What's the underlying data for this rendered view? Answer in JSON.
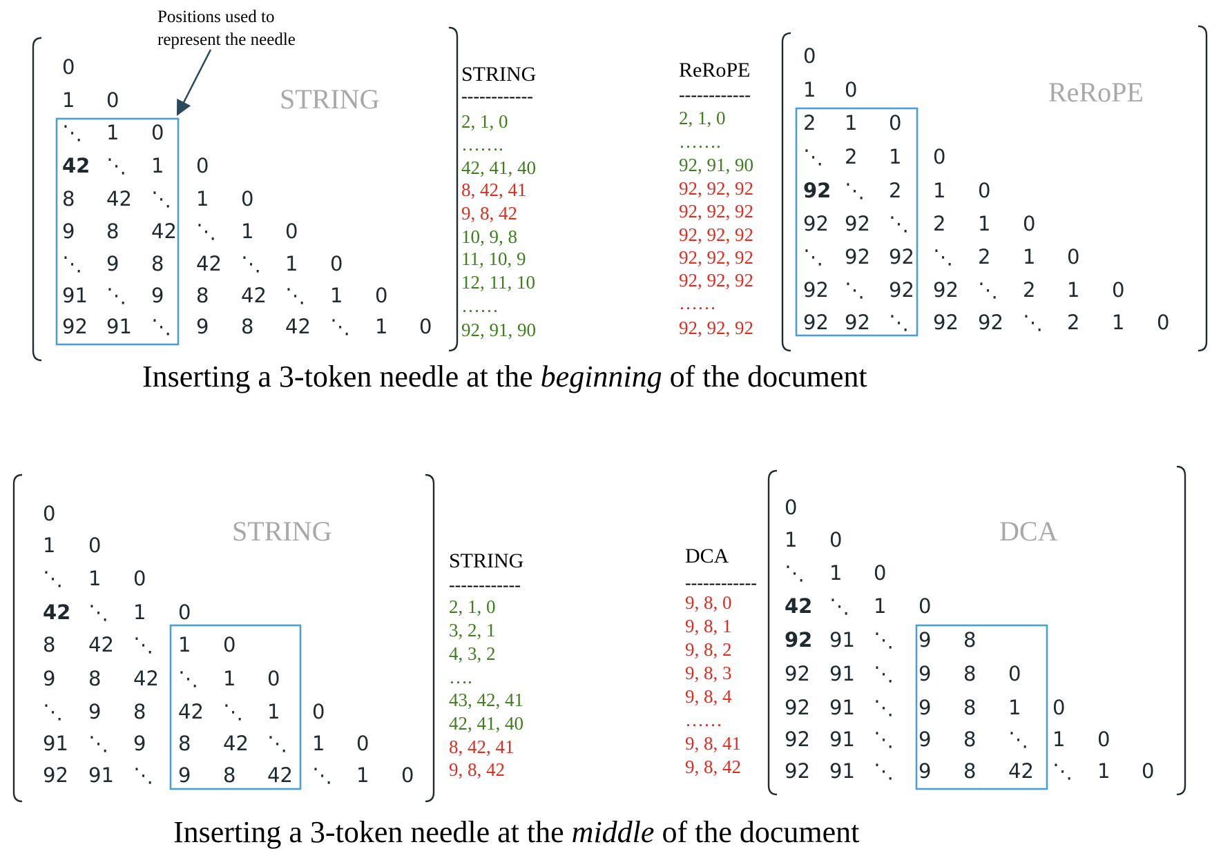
{
  "colors": {
    "normal": "#1f2a30",
    "needle": "#e8402a",
    "seq_green": "#3f7e1e",
    "seq_red": "#e02c20",
    "box": "#4b9fd0",
    "watermark": "#a8a8a8"
  },
  "top": {
    "annotation": [
      "Positions used to",
      "represent the needle"
    ],
    "caption": {
      "before": "Inserting a 3-token needle at the ",
      "emph": "beginning",
      "after": " of the document"
    },
    "left_matrix": {
      "watermark": "STRING",
      "rows": [
        [
          [
            "0",
            "n"
          ]
        ],
        [
          [
            "1",
            "n"
          ],
          [
            "0",
            "n"
          ]
        ],
        [
          [
            "⋱",
            "n"
          ],
          [
            "1",
            "n"
          ],
          [
            "0",
            "n"
          ]
        ],
        [
          [
            "42",
            "b"
          ],
          [
            "⋱",
            "n"
          ],
          [
            "1",
            "n"
          ],
          [
            "0",
            "n"
          ]
        ],
        [
          [
            "8",
            "r"
          ],
          [
            "42",
            "n"
          ],
          [
            "⋱",
            "n"
          ],
          [
            "1",
            "n"
          ],
          [
            "0",
            "n"
          ]
        ],
        [
          [
            "9",
            "n"
          ],
          [
            "8",
            "r"
          ],
          [
            "42",
            "n"
          ],
          [
            "⋱",
            "n"
          ],
          [
            "1",
            "n"
          ],
          [
            "0",
            "n"
          ]
        ],
        [
          [
            "⋱",
            "n"
          ],
          [
            "9",
            "n"
          ],
          [
            "8",
            "r"
          ],
          [
            "42",
            "n"
          ],
          [
            "⋱",
            "n"
          ],
          [
            "1",
            "n"
          ],
          [
            "0",
            "n"
          ]
        ],
        [
          [
            "91",
            "n"
          ],
          [
            "⋱",
            "n"
          ],
          [
            "9",
            "n"
          ],
          [
            "8",
            "r"
          ],
          [
            "42",
            "n"
          ],
          [
            "⋱",
            "n"
          ],
          [
            "1",
            "n"
          ],
          [
            "0",
            "n"
          ]
        ],
        [
          [
            "92",
            "n"
          ],
          [
            "91",
            "n"
          ],
          [
            "⋱",
            "n"
          ],
          [
            "9",
            "n"
          ],
          [
            "8",
            "r"
          ],
          [
            "42",
            "n"
          ],
          [
            "⋱",
            "n"
          ],
          [
            "1",
            "n"
          ],
          [
            "0",
            "n"
          ]
        ]
      ]
    },
    "string_list": {
      "header": "STRING",
      "dashes": "------------",
      "items": [
        [
          "2, 1, 0",
          "g"
        ],
        [
          "…….",
          "g"
        ],
        [
          "42, 41, 40",
          "g"
        ],
        [
          "8, 42, 41",
          "r"
        ],
        [
          "9,  8,  42",
          "r"
        ],
        [
          "10, 9,  8",
          "g"
        ],
        [
          "11, 10, 9",
          "g"
        ],
        [
          "12, 11, 10",
          "g"
        ],
        [
          "……",
          "g"
        ],
        [
          "92, 91, 90",
          "g"
        ]
      ]
    },
    "alt_list": {
      "header": "ReRoPE",
      "dashes": "------------",
      "items": [
        [
          "2, 1, 0",
          "g"
        ],
        [
          "…….",
          "g"
        ],
        [
          "92, 91, 90",
          "g"
        ],
        [
          "92, 92, 92",
          "r"
        ],
        [
          "92, 92, 92",
          "r"
        ],
        [
          "92, 92, 92",
          "r"
        ],
        [
          "92, 92, 92",
          "r"
        ],
        [
          "92, 92, 92",
          "r"
        ],
        [
          "……",
          "r"
        ],
        [
          "92, 92, 92",
          "r"
        ]
      ]
    },
    "right_matrix": {
      "watermark": "ReRoPE",
      "rows": [
        [
          [
            "0",
            "n"
          ]
        ],
        [
          [
            "1",
            "n"
          ],
          [
            "0",
            "n"
          ]
        ],
        [
          [
            "2",
            "n"
          ],
          [
            "1",
            "n"
          ],
          [
            "0",
            "n"
          ]
        ],
        [
          [
            "⋱",
            "n"
          ],
          [
            "2",
            "n"
          ],
          [
            "1",
            "n"
          ],
          [
            "0",
            "n"
          ]
        ],
        [
          [
            "92",
            "k"
          ],
          [
            "⋱",
            "n"
          ],
          [
            "2",
            "n"
          ],
          [
            "1",
            "n"
          ],
          [
            "0",
            "n"
          ]
        ],
        [
          [
            "92",
            "n"
          ],
          [
            "92",
            "n"
          ],
          [
            "⋱",
            "n"
          ],
          [
            "2",
            "n"
          ],
          [
            "1",
            "n"
          ],
          [
            "0",
            "n"
          ]
        ],
        [
          [
            "⋱",
            "n"
          ],
          [
            "92",
            "n"
          ],
          [
            "92",
            "n"
          ],
          [
            "⋱",
            "n"
          ],
          [
            "2",
            "n"
          ],
          [
            "1",
            "n"
          ],
          [
            "0",
            "n"
          ]
        ],
        [
          [
            "92",
            "n"
          ],
          [
            "⋱",
            "n"
          ],
          [
            "92",
            "n"
          ],
          [
            "92",
            "n"
          ],
          [
            "⋱",
            "n"
          ],
          [
            "2",
            "n"
          ],
          [
            "1",
            "n"
          ],
          [
            "0",
            "n"
          ]
        ],
        [
          [
            "92",
            "n"
          ],
          [
            "92",
            "n"
          ],
          [
            "⋱",
            "n"
          ],
          [
            "92",
            "n"
          ],
          [
            "92",
            "n"
          ],
          [
            "⋱",
            "n"
          ],
          [
            "2",
            "n"
          ],
          [
            "1",
            "n"
          ],
          [
            "0",
            "n"
          ]
        ]
      ]
    }
  },
  "bottom": {
    "caption": {
      "before": "Inserting a 3-token needle at the ",
      "emph": "middle",
      "after": " of the document"
    },
    "left_matrix": {
      "watermark": "STRING",
      "rows": [
        [
          [
            "0",
            "n"
          ]
        ],
        [
          [
            "1",
            "n"
          ],
          [
            "0",
            "n"
          ]
        ],
        [
          [
            "⋱",
            "n"
          ],
          [
            "1",
            "n"
          ],
          [
            "0",
            "n"
          ]
        ],
        [
          [
            "42",
            "b"
          ],
          [
            "⋱",
            "n"
          ],
          [
            "1",
            "n"
          ],
          [
            "0",
            "n"
          ]
        ],
        [
          [
            "8",
            "r"
          ],
          [
            "42",
            "n"
          ],
          [
            "⋱",
            "n"
          ],
          [
            "1",
            "n"
          ],
          [
            "0",
            "n"
          ]
        ],
        [
          [
            "9",
            "n"
          ],
          [
            "8",
            "r"
          ],
          [
            "42",
            "n"
          ],
          [
            "⋱",
            "n"
          ],
          [
            "1",
            "n"
          ],
          [
            "0",
            "n"
          ]
        ],
        [
          [
            "⋱",
            "n"
          ],
          [
            "9",
            "n"
          ],
          [
            "8",
            "r"
          ],
          [
            "42",
            "n"
          ],
          [
            "⋱",
            "n"
          ],
          [
            "1",
            "n"
          ],
          [
            "0",
            "n"
          ]
        ],
        [
          [
            "91",
            "n"
          ],
          [
            "⋱",
            "n"
          ],
          [
            "9",
            "n"
          ],
          [
            "8",
            "r"
          ],
          [
            "42",
            "n"
          ],
          [
            "⋱",
            "n"
          ],
          [
            "1",
            "n"
          ],
          [
            "0",
            "n"
          ]
        ],
        [
          [
            "92",
            "n"
          ],
          [
            "91",
            "n"
          ],
          [
            "⋱",
            "n"
          ],
          [
            "9",
            "n"
          ],
          [
            "8",
            "r"
          ],
          [
            "42",
            "n"
          ],
          [
            "⋱",
            "n"
          ],
          [
            "1",
            "n"
          ],
          [
            "0",
            "n"
          ]
        ]
      ]
    },
    "string_list": {
      "header": "STRING",
      "dashes": "------------",
      "items": [
        [
          "2,  1,  0",
          "g"
        ],
        [
          "3,  2,  1",
          "g"
        ],
        [
          "4,  3,  2",
          "g"
        ],
        [
          "….",
          "g"
        ],
        [
          "43, 42, 41",
          "g"
        ],
        [
          "42, 41, 40",
          "g"
        ],
        [
          "8, 42, 41",
          "r"
        ],
        [
          "9, 8, 42",
          "r"
        ]
      ]
    },
    "alt_list": {
      "header": "DCA",
      "dashes": "------------",
      "items": [
        [
          "9, 8, 0",
          "r"
        ],
        [
          "9, 8, 1",
          "r"
        ],
        [
          "9, 8, 2",
          "r"
        ],
        [
          "9, 8, 3",
          "r"
        ],
        [
          "9, 8, 4",
          "r"
        ],
        [
          "……",
          "r"
        ],
        [
          "9, 8, 41",
          "r"
        ],
        [
          "9, 8, 42",
          "r"
        ]
      ]
    },
    "right_matrix": {
      "watermark": "DCA",
      "rows": [
        [
          [
            "0",
            "n"
          ]
        ],
        [
          [
            "1",
            "n"
          ],
          [
            "0",
            "n"
          ]
        ],
        [
          [
            "⋱",
            "n"
          ],
          [
            "1",
            "n"
          ],
          [
            "0",
            "n"
          ]
        ],
        [
          [
            "42",
            "b"
          ],
          [
            "⋱",
            "n"
          ],
          [
            "1",
            "n"
          ],
          [
            "0",
            "n"
          ]
        ],
        [
          [
            "92",
            "k"
          ],
          [
            "91",
            "n"
          ],
          [
            "⋱",
            "n"
          ],
          [
            "9",
            "n"
          ],
          [
            "8",
            "r"
          ]
        ],
        [
          [
            "92",
            "n"
          ],
          [
            "91",
            "n"
          ],
          [
            "⋱",
            "n"
          ],
          [
            "9",
            "n"
          ],
          [
            "8",
            "r"
          ],
          [
            "0",
            "n"
          ]
        ],
        [
          [
            "92",
            "n"
          ],
          [
            "91",
            "n"
          ],
          [
            "⋱",
            "n"
          ],
          [
            "9",
            "n"
          ],
          [
            "8",
            "r"
          ],
          [
            "1",
            "n"
          ],
          [
            "0",
            "n"
          ]
        ],
        [
          [
            "92",
            "n"
          ],
          [
            "91",
            "n"
          ],
          [
            "⋱",
            "n"
          ],
          [
            "9",
            "n"
          ],
          [
            "8",
            "r"
          ],
          [
            "⋱",
            "n"
          ],
          [
            "1",
            "n"
          ],
          [
            "0",
            "n"
          ]
        ],
        [
          [
            "92",
            "n"
          ],
          [
            "91",
            "n"
          ],
          [
            "⋱",
            "n"
          ],
          [
            "9",
            "n"
          ],
          [
            "8",
            "r"
          ],
          [
            "42",
            "n"
          ],
          [
            "⋱",
            "n"
          ],
          [
            "1",
            "n"
          ],
          [
            "0",
            "n"
          ]
        ]
      ]
    }
  }
}
